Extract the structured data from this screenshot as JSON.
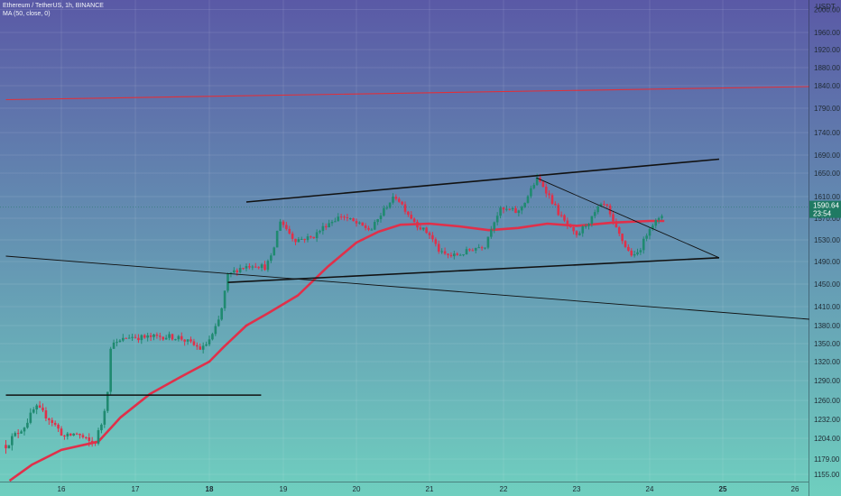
{
  "legend": {
    "symbol": "Ethereum / TetherUS, 1h, BINANCE",
    "indicator": "MA (50, close, 0)"
  },
  "colors": {
    "bg_top": "#5a59a6",
    "bg_bottom": "#6fcfbf",
    "up": "#1f8a70",
    "down": "#e0304a",
    "ma": "#e0304a",
    "resistance": "#e0303a",
    "trendline": "#111111",
    "price_label_bg": "#1f7a63"
  },
  "chart_data": {
    "type": "candlestick",
    "title": "",
    "currency": "USDT",
    "ylim": [
      1140,
      2010
    ],
    "xlim": [
      15.25,
      26.2
    ],
    "y_ticks": [
      "2000.00",
      "1960.00",
      "1920.00",
      "1880.00",
      "1840.00",
      "1790.00",
      "1740.00",
      "1690.00",
      "1650.00",
      "1610.00",
      "1570.00",
      "1530.00",
      "1490.00",
      "1450.00",
      "1410.00",
      "1380.00",
      "1350.00",
      "1320.00",
      "1290.00",
      "1260.00",
      "1232.00",
      "1204.00",
      "1179.00",
      "1155.00"
    ],
    "y_tick_values": [
      2000,
      1960,
      1920,
      1880,
      1840,
      1790,
      1740,
      1690,
      1650,
      1610,
      1570,
      1530,
      1490,
      1450,
      1410,
      1380,
      1350,
      1320,
      1290,
      1260,
      1232,
      1204,
      1179,
      1155
    ],
    "x_ticks": [
      {
        "label": "16",
        "bold": false
      },
      {
        "label": "17",
        "bold": false
      },
      {
        "label": "18",
        "bold": true
      },
      {
        "label": "19",
        "bold": false
      },
      {
        "label": "20",
        "bold": false
      },
      {
        "label": "21",
        "bold": false
      },
      {
        "label": "22",
        "bold": false
      },
      {
        "label": "23",
        "bold": false
      },
      {
        "label": "24",
        "bold": false
      },
      {
        "label": "25",
        "bold": true
      },
      {
        "label": "26",
        "bold": false
      }
    ],
    "x_tick_values": [
      16,
      17,
      18,
      19,
      20,
      21,
      22,
      23,
      24,
      25,
      26
    ],
    "current_price": {
      "label": "1590.64",
      "countdown": "23:54",
      "value": 1590.64
    },
    "price_path": [
      [
        15.25,
        1196
      ],
      [
        15.5,
        1222
      ],
      [
        15.65,
        1250
      ],
      [
        15.85,
        1232
      ],
      [
        16.05,
        1205
      ],
      [
        16.2,
        1212
      ],
      [
        16.35,
        1200
      ],
      [
        16.45,
        1198
      ],
      [
        16.55,
        1228
      ],
      [
        16.62,
        1270
      ],
      [
        16.68,
        1360
      ],
      [
        16.75,
        1350
      ],
      [
        16.9,
        1362
      ],
      [
        17.1,
        1360
      ],
      [
        17.4,
        1362
      ],
      [
        17.6,
        1360
      ],
      [
        17.9,
        1340
      ],
      [
        18.05,
        1365
      ],
      [
        18.15,
        1395
      ],
      [
        18.25,
        1465
      ],
      [
        18.4,
        1478
      ],
      [
        18.6,
        1485
      ],
      [
        18.75,
        1480
      ],
      [
        18.85,
        1500
      ],
      [
        18.95,
        1568
      ],
      [
        19.15,
        1530
      ],
      [
        19.4,
        1535
      ],
      [
        19.6,
        1560
      ],
      [
        19.8,
        1575
      ],
      [
        20.0,
        1560
      ],
      [
        20.2,
        1548
      ],
      [
        20.35,
        1580
      ],
      [
        20.45,
        1600
      ],
      [
        20.55,
        1610
      ],
      [
        20.7,
        1580
      ],
      [
        20.85,
        1555
      ],
      [
        21.0,
        1540
      ],
      [
        21.15,
        1505
      ],
      [
        21.3,
        1500
      ],
      [
        21.45,
        1505
      ],
      [
        21.6,
        1515
      ],
      [
        21.75,
        1520
      ],
      [
        21.85,
        1560
      ],
      [
        21.95,
        1585
      ],
      [
        22.1,
        1585
      ],
      [
        22.2,
        1580
      ],
      [
        22.35,
        1615
      ],
      [
        22.45,
        1640
      ],
      [
        22.55,
        1628
      ],
      [
        22.65,
        1605
      ],
      [
        22.75,
        1580
      ],
      [
        22.85,
        1560
      ],
      [
        23.0,
        1535
      ],
      [
        23.1,
        1555
      ],
      [
        23.2,
        1568
      ],
      [
        23.3,
        1590
      ],
      [
        23.4,
        1595
      ],
      [
        23.5,
        1560
      ],
      [
        23.6,
        1535
      ],
      [
        23.7,
        1510
      ],
      [
        23.8,
        1498
      ],
      [
        23.9,
        1522
      ],
      [
        24.0,
        1555
      ],
      [
        24.1,
        1565
      ],
      [
        24.15,
        1568
      ],
      [
        24.2,
        1590
      ]
    ],
    "ma_path": [
      [
        15.3,
        1145
      ],
      [
        15.6,
        1170
      ],
      [
        16.0,
        1190
      ],
      [
        16.5,
        1200
      ],
      [
        16.8,
        1235
      ],
      [
        17.2,
        1270
      ],
      [
        17.6,
        1295
      ],
      [
        18.0,
        1320
      ],
      [
        18.2,
        1345
      ],
      [
        18.5,
        1380
      ],
      [
        18.8,
        1400
      ],
      [
        19.2,
        1430
      ],
      [
        19.6,
        1480
      ],
      [
        20.0,
        1525
      ],
      [
        20.3,
        1545
      ],
      [
        20.6,
        1558
      ],
      [
        21.0,
        1560
      ],
      [
        21.4,
        1555
      ],
      [
        21.8,
        1548
      ],
      [
        22.2,
        1552
      ],
      [
        22.6,
        1560
      ],
      [
        23.0,
        1556
      ],
      [
        23.5,
        1562
      ],
      [
        24.0,
        1565
      ],
      [
        24.2,
        1565
      ]
    ],
    "drawings": [
      {
        "name": "resistance-line",
        "color": "#e0303a",
        "width": 1.1,
        "from": [
          15.25,
          1809
        ],
        "to": [
          26.2,
          1838
        ]
      },
      {
        "name": "upper-channel-line",
        "color": "#111111",
        "width": 1.6,
        "from": [
          18.5,
          1600
        ],
        "to": [
          24.95,
          1681
        ]
      },
      {
        "name": "lower-channel-line",
        "color": "#111111",
        "width": 1.6,
        "from": [
          18.25,
          1453
        ],
        "to": [
          24.95,
          1497
        ]
      },
      {
        "name": "descending-trendline",
        "color": "#111111",
        "width": 0.9,
        "from": [
          22.45,
          1642
        ],
        "to": [
          24.95,
          1497
        ]
      },
      {
        "name": "long-descending-line",
        "color": "#111111",
        "width": 0.9,
        "from": [
          15.25,
          1500
        ],
        "to": [
          26.2,
          1390
        ]
      },
      {
        "name": "support-line",
        "color": "#111111",
        "width": 1.6,
        "from": [
          15.25,
          1268
        ],
        "to": [
          18.7,
          1268
        ]
      }
    ]
  }
}
